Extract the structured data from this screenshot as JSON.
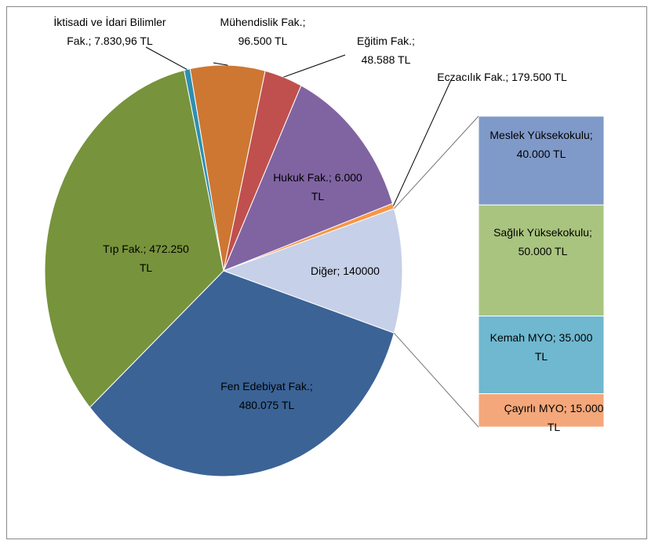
{
  "chart_data": {
    "type": "pie",
    "labels": [
      "İktisadi ve İdari Bilimler Fak.; 7.830,96 TL",
      "Mühendislik Fak.; 96.500 TL",
      "Eğitim Fak.; 48.588 TL",
      "Eczacılık Fak.; 179.500 TL",
      "Hukuk Fak.; 6.000 TL",
      "Diğer; 140000",
      "Fen Edebiyat Fak.; 480.075 TL",
      "Tıp Fak.; 472.250 TL"
    ],
    "values": [
      7830.96,
      96500,
      48588,
      179500,
      6000,
      140000,
      480075,
      472250
    ],
    "colors": [
      "#2e8fb0",
      "#ce7733",
      "#c0504d",
      "#8064a2",
      "#f79646",
      "#c6d0e8",
      "#3b6396",
      "#77933c"
    ],
    "breakout": {
      "type": "bar",
      "labels": [
        "Meslek Yüksekokulu; 40.000 TL",
        "Sağlık Yüksekokulu; 50.000 TL",
        "Kemah MYO; 35.000 TL",
        "Çayırlı MYO; 15.000 TL"
      ],
      "values": [
        40000,
        50000,
        35000,
        15000
      ],
      "colors": [
        "#7f9ac9",
        "#a9c47f",
        "#6fb8d0",
        "#f4a77a"
      ]
    }
  }
}
